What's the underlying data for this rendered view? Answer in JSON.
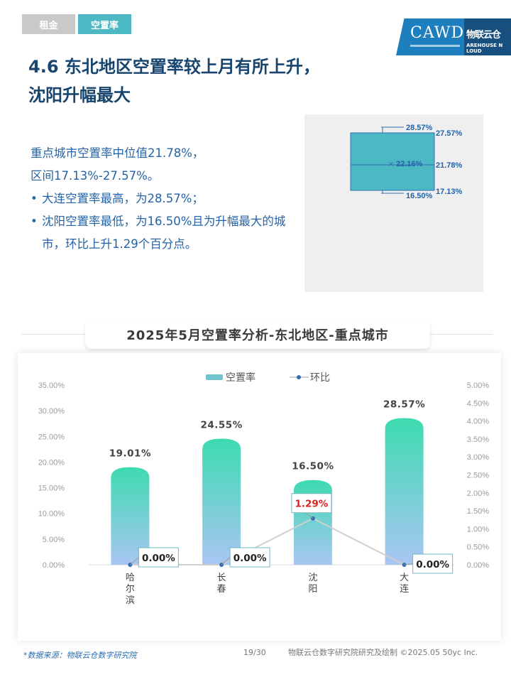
{
  "tabs": [
    {
      "label": "租金",
      "active": false
    },
    {
      "label": "空置率",
      "active": true
    }
  ],
  "logo": {
    "main": "CAWD",
    "cn": "物联云仓",
    "en": "AREHOUSE N LOUD"
  },
  "title": {
    "line1": "4.6 东北地区空置率较上月有所上升，",
    "line2": "沈阳升幅最大"
  },
  "summary": {
    "line1": "重点城市空置率中位值21.78%，",
    "line2": "区间17.13%-27.57%。",
    "bullets": [
      "大连空置率最高，为28.57%；",
      "沈阳空置率最低，为16.50%且为升幅最大的城市，环比上升1.29个百分点。"
    ]
  },
  "boxplot": {
    "max_label": "28.57%",
    "q3_label": "27.57%",
    "mean_label": "22.16%",
    "median_label": "21.78%",
    "min_label": "16.50%",
    "q1_label": "17.13%",
    "color": "#4cb8c4"
  },
  "chart_title": "2025年5月空置率分析-东北地区-重点城市",
  "colors": {
    "bar_top": "#3ddbb0",
    "bar_bottom": "#a9c6f3",
    "line": "#cfcfcf",
    "point": "#2e6fb0",
    "axis_text": "#9a9a9a",
    "highlight": "#e02020"
  },
  "chart_data": {
    "type": "bar",
    "categories": [
      "哈尔滨",
      "长春",
      "沈阳",
      "大连"
    ],
    "category_display": [
      "哈\n尔\n滨",
      "长\n春",
      "沈\n阳",
      "大\n连"
    ],
    "series": [
      {
        "name": "空置率",
        "type": "bar",
        "axis": "left",
        "values": [
          19.01,
          24.55,
          16.5,
          28.57
        ],
        "labels": [
          "19.01%",
          "24.55%",
          "16.50%",
          "28.57%"
        ]
      },
      {
        "name": "环比",
        "type": "line",
        "axis": "right",
        "values": [
          0.0,
          0.0,
          1.29,
          0.0
        ],
        "labels": [
          "0.00%",
          "0.00%",
          "1.29%",
          "0.00%"
        ]
      }
    ],
    "y_left": {
      "range": [
        0,
        35
      ],
      "ticks": [
        "0.00%",
        "5.00%",
        "10.00%",
        "15.00%",
        "20.00%",
        "25.00%",
        "30.00%",
        "35.00%"
      ]
    },
    "y_right": {
      "range": [
        0,
        5
      ],
      "ticks": [
        "0.00%",
        "0.50%",
        "1.00%",
        "1.50%",
        "2.00%",
        "2.50%",
        "3.00%",
        "3.50%",
        "4.00%",
        "4.50%",
        "5.00%"
      ]
    },
    "legend_position": "top-center",
    "grid": false
  },
  "footer": {
    "source": "*数据来源：物联云仓数字研究院",
    "page": "19/30",
    "credit": "物联云仓数字研究院研究及绘制 ©2025.05 50yc Inc."
  }
}
